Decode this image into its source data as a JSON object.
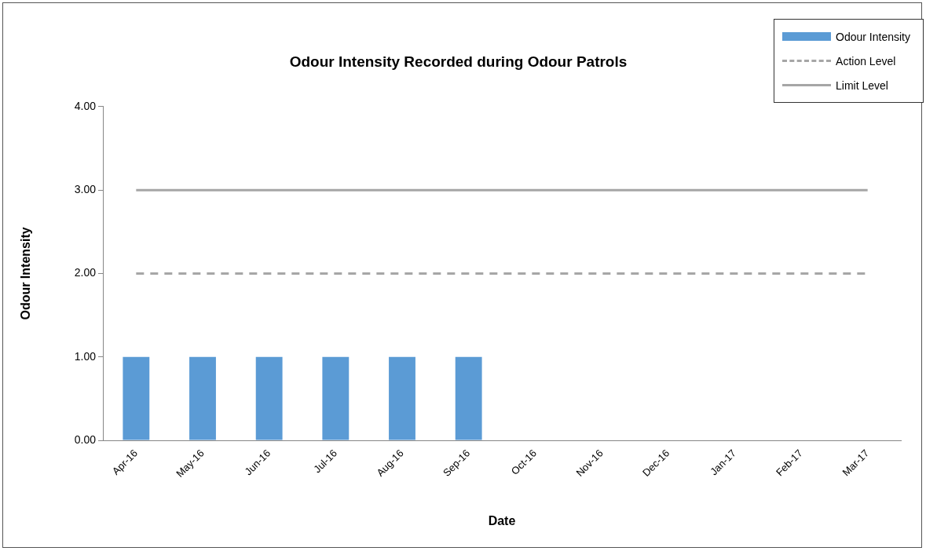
{
  "chart_data": {
    "type": "bar",
    "title": "Odour Intensity Recorded during Odour Patrols",
    "xlabel": "Date",
    "ylabel": "Odour Intensity",
    "categories": [
      "Apr-16",
      "May-16",
      "Jun-16",
      "Jul-16",
      "Aug-16",
      "Sep-16",
      "Oct-16",
      "Nov-16",
      "Dec-16",
      "Jan-17",
      "Feb-17",
      "Mar-17"
    ],
    "series": [
      {
        "name": "Odour Intensity",
        "color": "#5b9bd5",
        "values": [
          1,
          1,
          1,
          1,
          1,
          1,
          null,
          null,
          null,
          null,
          null,
          null
        ]
      },
      {
        "name": "Action Level",
        "type": "line",
        "line_style": "dashed",
        "color": "#a6a6a6",
        "values": [
          2,
          2,
          2,
          2,
          2,
          2,
          2,
          2,
          2,
          2,
          2,
          2
        ]
      },
      {
        "name": "Limit Level",
        "type": "line",
        "line_style": "solid",
        "color": "#a6a6a6",
        "values": [
          3,
          3,
          3,
          3,
          3,
          3,
          3,
          3,
          3,
          3,
          3,
          3
        ]
      }
    ],
    "ylim": [
      0,
      4
    ],
    "yticks": [
      {
        "value": 0,
        "label": "0.00"
      },
      {
        "value": 1,
        "label": "1.00"
      },
      {
        "value": 2,
        "label": "2.00"
      },
      {
        "value": 3,
        "label": "3.00"
      },
      {
        "value": 4,
        "label": "4.00"
      }
    ],
    "legend": "top right",
    "marker": "none"
  }
}
